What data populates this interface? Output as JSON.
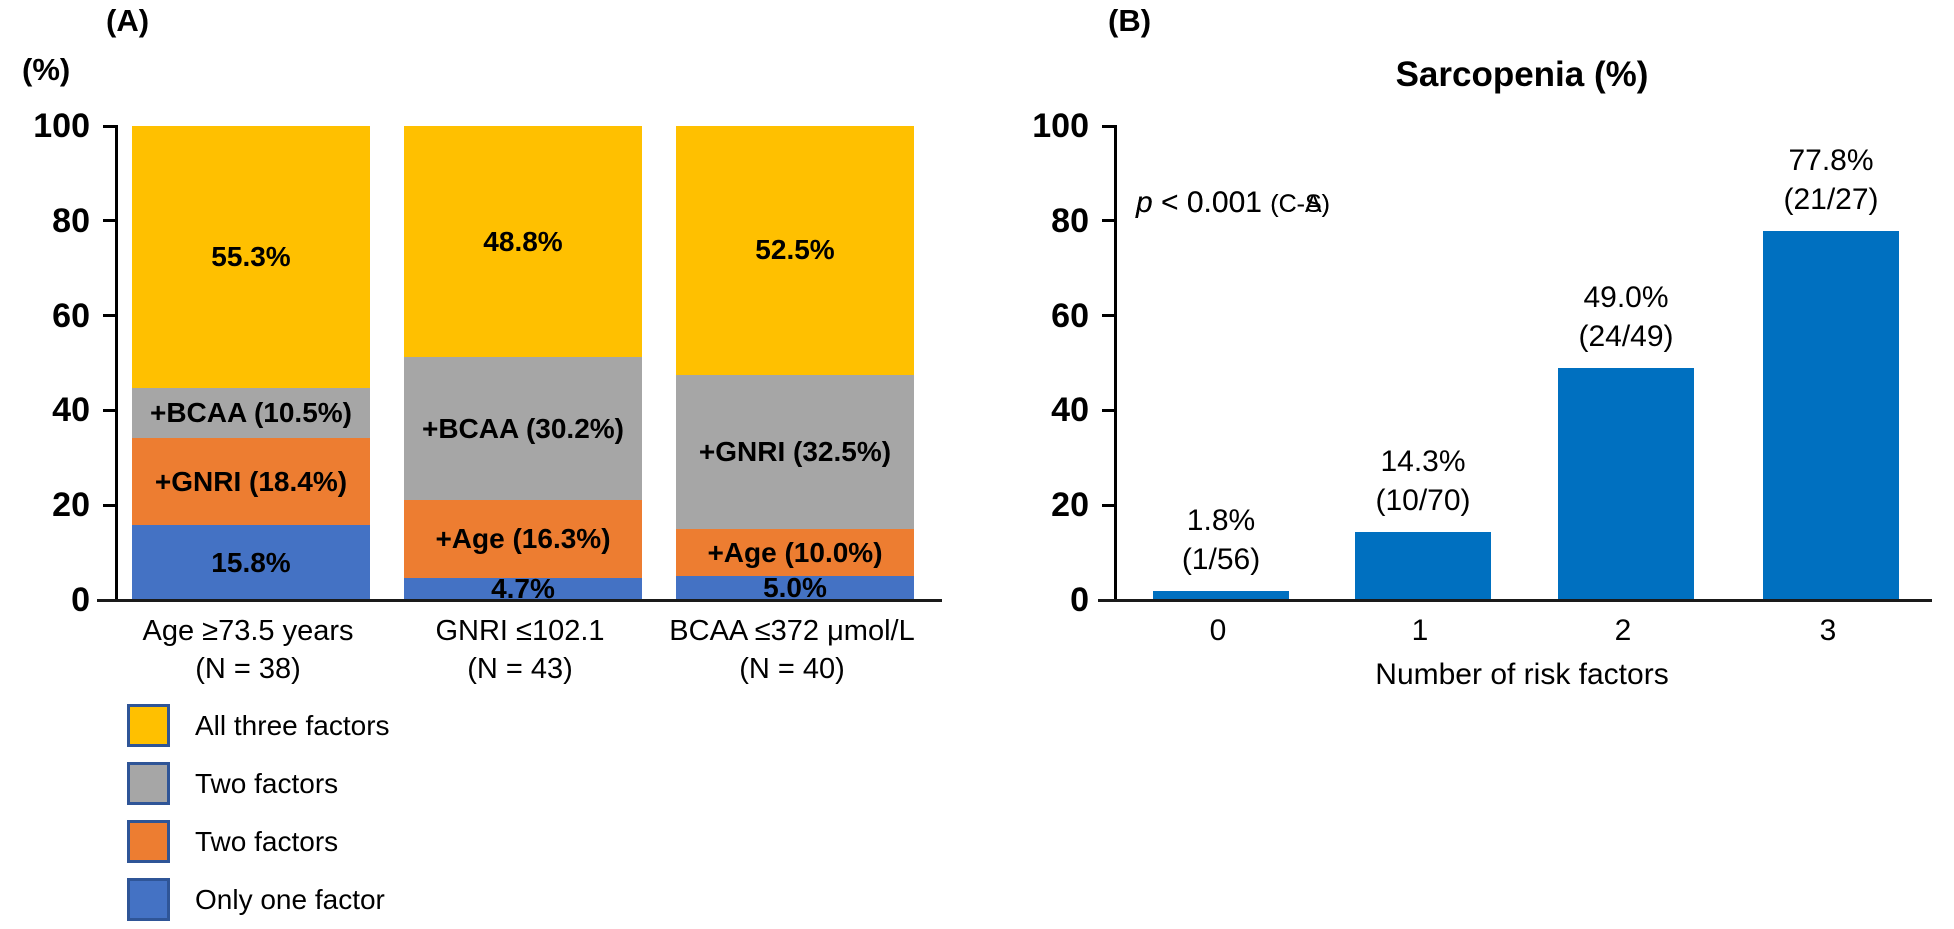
{
  "panel_a": {
    "label": "(A)",
    "y_axis_title": "(%)",
    "y_ticks": [
      100,
      80,
      60,
      40,
      20,
      0
    ],
    "bars": [
      {
        "category_line1": "Age ≥73.5 years",
        "category_line2": "(N = 38)",
        "segments": [
          {
            "value": 15.8,
            "color": "#4472C4",
            "label": "15.8%"
          },
          {
            "value": 18.4,
            "color": "#ED7D31",
            "label": "+GNRI (18.4%)"
          },
          {
            "value": 10.5,
            "color": "#A6A6A6",
            "label": "+BCAA (10.5%)"
          },
          {
            "value": 55.3,
            "color": "#FFC000",
            "label": "55.3%"
          }
        ]
      },
      {
        "category_line1": "GNRI ≤102.1",
        "category_line2": "(N = 43)",
        "segments": [
          {
            "value": 4.7,
            "color": "#4472C4",
            "label": "4.7%"
          },
          {
            "value": 16.3,
            "color": "#ED7D31",
            "label": "+Age (16.3%)"
          },
          {
            "value": 30.2,
            "color": "#A6A6A6",
            "label": "+BCAA (30.2%)"
          },
          {
            "value": 48.8,
            "color": "#FFC000",
            "label": "48.8%"
          }
        ]
      },
      {
        "category_line1": "BCAA ≤372 μmol/L",
        "category_line2": "(N = 40)",
        "segments": [
          {
            "value": 5.0,
            "color": "#4472C4",
            "label": "5.0%"
          },
          {
            "value": 10.0,
            "color": "#ED7D31",
            "label": "+Age (10.0%)"
          },
          {
            "value": 32.5,
            "color": "#A6A6A6",
            "label": "+GNRI (32.5%)"
          },
          {
            "value": 52.5,
            "color": "#FFC000",
            "label": "52.5%"
          }
        ]
      }
    ],
    "legend": [
      {
        "color": "#FFC000",
        "label": "All three factors"
      },
      {
        "color": "#A6A6A6",
        "label": "Two factors"
      },
      {
        "color": "#ED7D31",
        "label": "Two factors"
      },
      {
        "color": "#4472C4",
        "label": "Only one factor"
      }
    ]
  },
  "panel_b": {
    "label": "(B)",
    "title": "Sarcopenia (%)",
    "y_ticks": [
      100,
      80,
      60,
      40,
      20,
      0
    ],
    "x_label": "Number of risk factors",
    "bar_color": "#0070C0",
    "annotations": [
      {
        "italic": "p",
        "text": " < 0.001 ",
        "small": "(C-S)"
      },
      {
        "italic": "p",
        "text": " < 0.001 ",
        "small": "(C-A)"
      }
    ],
    "bars": [
      {
        "category": "0",
        "value": 1.8,
        "label_line1": "1.8%",
        "label_line2": "(1/56)"
      },
      {
        "category": "1",
        "value": 14.3,
        "label_line1": "14.3%",
        "label_line2": "(10/70)"
      },
      {
        "category": "2",
        "value": 49.0,
        "label_line1": "49.0%",
        "label_line2": "(24/49)"
      },
      {
        "category": "3",
        "value": 77.8,
        "label_line1": "77.8%",
        "label_line2": "(21/27)"
      }
    ]
  },
  "chart_data": [
    {
      "type": "bar",
      "subtype": "stacked_percent",
      "title": "",
      "ylabel": "(%)",
      "ylim": [
        0,
        100
      ],
      "grid": false,
      "legend_position": "bottom-left",
      "categories": [
        "Age ≥73.5 years (N = 38)",
        "GNRI ≤102.1 (N = 43)",
        "BCAA ≤372 μmol/L (N = 40)"
      ],
      "series": [
        {
          "name": "Only one factor",
          "color": "#4472C4",
          "values": [
            15.8,
            4.7,
            5.0
          ]
        },
        {
          "name": "Two factors",
          "color": "#ED7D31",
          "values": [
            18.4,
            16.3,
            10.0
          ]
        },
        {
          "name": "Two factors",
          "color": "#A6A6A6",
          "values": [
            10.5,
            30.2,
            32.5
          ]
        },
        {
          "name": "All three factors",
          "color": "#FFC000",
          "values": [
            55.3,
            48.8,
            52.5
          ]
        }
      ],
      "segment_labels": [
        [
          "15.8%",
          "+GNRI (18.4%)",
          "+BCAA (10.5%)",
          "55.3%"
        ],
        [
          "4.7%",
          "+Age (16.3%)",
          "+BCAA (30.2%)",
          "48.8%"
        ],
        [
          "5.0%",
          "+Age (10.0%)",
          "+GNRI (32.5%)",
          "52.5%"
        ]
      ]
    },
    {
      "type": "bar",
      "title": "Sarcopenia (%)",
      "xlabel": "Number of risk factors",
      "ylim": [
        0,
        100
      ],
      "grid": false,
      "bar_color": "#0070C0",
      "categories": [
        "0",
        "1",
        "2",
        "3"
      ],
      "values": [
        1.8,
        14.3,
        49.0,
        77.8
      ],
      "bar_labels": [
        "1.8% (1/56)",
        "14.3% (10/70)",
        "49.0% (24/49)",
        "77.8% (21/27)"
      ],
      "annotations": [
        "p < 0.001 (C-S)",
        "p < 0.001 (C-A)"
      ]
    }
  ]
}
